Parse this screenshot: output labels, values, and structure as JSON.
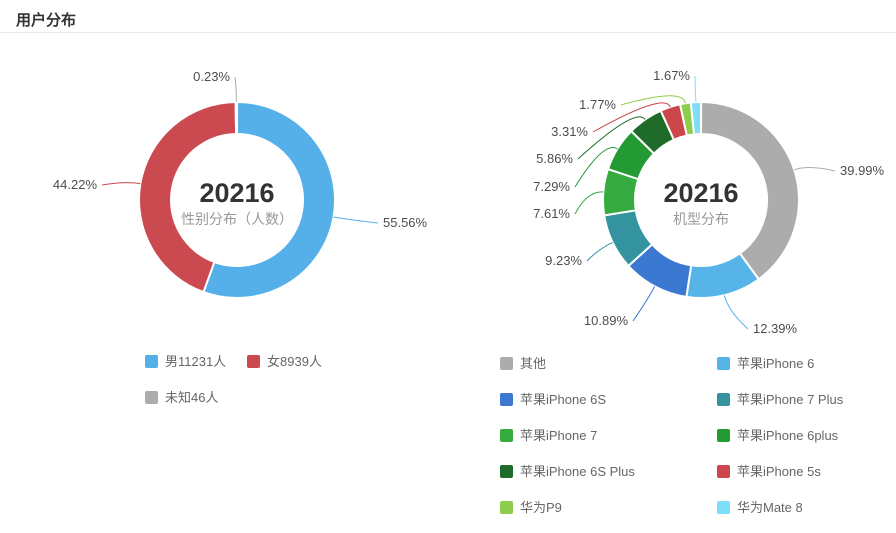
{
  "page": {
    "title": "用户分布"
  },
  "chart_data": [
    {
      "type": "pie",
      "subtype": "donut",
      "title": "性别分布（人数）",
      "center_value": "20216",
      "total": 20216,
      "labels": [
        "男",
        "女",
        "未知"
      ],
      "counts": [
        11231,
        8939,
        46
      ],
      "percents": [
        55.56,
        44.22,
        0.23
      ],
      "percent_labels": [
        "55.56%",
        "44.22%",
        "0.23%"
      ],
      "colors": [
        "#55afe8",
        "#cb4a50",
        "#acacac"
      ],
      "legend_labels": [
        "男11231人",
        "女8939人",
        "未知46人"
      ],
      "legend_position": "bottom",
      "start_angle_deg": 0,
      "direction": "clockwise"
    },
    {
      "type": "pie",
      "subtype": "donut",
      "title": "机型分布",
      "center_value": "20216",
      "total": 20216,
      "labels": [
        "其他",
        "苹果iPhone 6",
        "苹果iPhone 6S",
        "苹果iPhone 7 Plus",
        "苹果iPhone 7",
        "苹果iPhone 6plus",
        "苹果iPhone 6S Plus",
        "苹果iPhone 5s",
        "华为P9",
        "华为Mate 8"
      ],
      "percents": [
        39.99,
        12.39,
        10.89,
        9.23,
        7.61,
        7.29,
        5.86,
        3.31,
        1.77,
        1.67
      ],
      "percent_labels": [
        "39.99%",
        "12.39%",
        "10.89%",
        "9.23%",
        "7.61%",
        "7.29%",
        "5.86%",
        "3.31%",
        "1.77%",
        "1.67%"
      ],
      "colors": [
        "#acacac",
        "#57b4e9",
        "#3a78d2",
        "#33949f",
        "#35ab40",
        "#249a35",
        "#1e6b2a",
        "#cc464c",
        "#8cce4c",
        "#7eddf8"
      ],
      "legend_labels": [
        "其他",
        "苹果iPhone 6",
        "苹果iPhone 6S",
        "苹果iPhone 7 Plus",
        "苹果iPhone 7",
        "苹果iPhone 6plus",
        "苹果iPhone 6S Plus",
        "苹果iPhone 5s",
        "华为P9",
        "华为Mate 8"
      ],
      "legend_position": "bottom",
      "start_angle_deg": 0,
      "direction": "clockwise"
    }
  ]
}
